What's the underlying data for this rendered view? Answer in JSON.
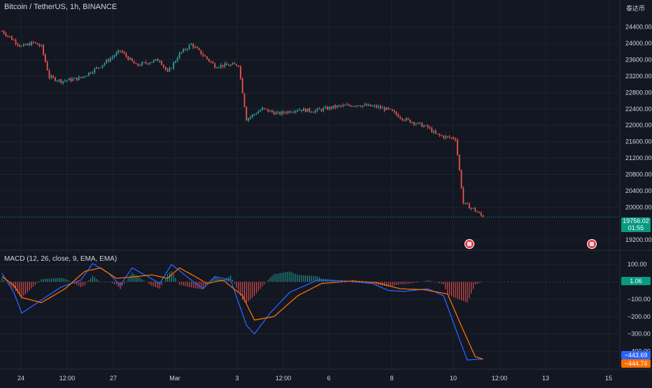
{
  "header": {
    "symbol_title": "Bitcoin / TetherUS, 1h, BINANCE",
    "currency": "泰达币"
  },
  "price_tag": {
    "price": "19756.02",
    "countdown": "01:55"
  },
  "macd": {
    "title": "MACD (12, 26, close, 9, EMA, EMA)",
    "hist_value": "1.06",
    "macd_value": "−443.69",
    "signal_value": "−444.74",
    "colors": {
      "macd": "#2962ff",
      "signal": "#ff6d00",
      "hist_pos": "#26a69a",
      "hist_neg": "#ef5350"
    }
  },
  "colors": {
    "background": "#131722",
    "up": "#26a69a",
    "down": "#ef5350",
    "grid": "#1e222d",
    "text": "#d1d4dc",
    "accent_tag": "#089981"
  },
  "events": [
    {
      "icon": "event-flag-icon",
      "x": 2208
    },
    {
      "icon": "event-flag-icon",
      "x": 2278
    }
  ],
  "chart_data": [
    {
      "type": "candlestick",
      "title": "Bitcoin / TetherUS, 1h, BINANCE",
      "x_unit": "hours since Feb 23 00:00",
      "y_ticks": [
        "24400.00",
        "24000.00",
        "23600.00",
        "23200.00",
        "22800.00",
        "22400.00",
        "22000.00",
        "21600.00",
        "21200.00",
        "20800.00",
        "20400.00",
        "20000.00",
        "19200.00"
      ],
      "x_ticks": [
        "24",
        "12:00",
        "27",
        "Mar",
        "3",
        "12:00",
        "6",
        "8",
        "10",
        "12:00",
        "13",
        "15"
      ],
      "ylim": [
        19050,
        24650
      ],
      "last_price": 19756.02,
      "close_anchors": [
        [
          2160,
          24300
        ],
        [
          2164,
          24150
        ],
        [
          2170,
          23920
        ],
        [
          2176,
          24020
        ],
        [
          2180,
          23920
        ],
        [
          2184,
          23180
        ],
        [
          2190,
          23080
        ],
        [
          2196,
          23120
        ],
        [
          2200,
          23160
        ],
        [
          2210,
          23450
        ],
        [
          2220,
          23820
        ],
        [
          2228,
          23460
        ],
        [
          2236,
          23560
        ],
        [
          2240,
          23600
        ],
        [
          2244,
          23280
        ],
        [
          2250,
          23740
        ],
        [
          2256,
          23980
        ],
        [
          2268,
          23450
        ],
        [
          2280,
          23480
        ],
        [
          2284,
          22150
        ],
        [
          2292,
          22400
        ],
        [
          2300,
          22280
        ],
        [
          2310,
          22390
        ],
        [
          2318,
          22350
        ],
        [
          2330,
          22460
        ],
        [
          2340,
          22500
        ],
        [
          2350,
          22450
        ],
        [
          2356,
          22380
        ],
        [
          2364,
          22150
        ],
        [
          2376,
          21950
        ],
        [
          2380,
          21780
        ],
        [
          2384,
          21720
        ],
        [
          2390,
          21680
        ],
        [
          2394,
          20100
        ],
        [
          2400,
          19920
        ],
        [
          2404,
          19756
        ]
      ]
    },
    {
      "type": "line",
      "title": "MACD (12, 26, close, 9, EMA, EMA)",
      "y_ticks": [
        "100.00",
        "−100.00",
        "−200.00",
        "−300.00",
        "−400.00"
      ],
      "ylim": [
        -470,
        125
      ],
      "series": [
        {
          "name": "MACD",
          "anchors": [
            [
              2160,
              50
            ],
            [
              2166,
              -60
            ],
            [
              2170,
              -180
            ],
            [
              2178,
              -120
            ],
            [
              2190,
              -30
            ],
            [
              2200,
              10
            ],
            [
              2206,
              105
            ],
            [
              2214,
              50
            ],
            [
              2220,
              -20
            ],
            [
              2226,
              80
            ],
            [
              2234,
              30
            ],
            [
              2240,
              -10
            ],
            [
              2246,
              100
            ],
            [
              2256,
              10
            ],
            [
              2262,
              -40
            ],
            [
              2268,
              30
            ],
            [
              2276,
              10
            ],
            [
              2284,
              -250
            ],
            [
              2288,
              -300
            ],
            [
              2296,
              -180
            ],
            [
              2306,
              -60
            ],
            [
              2320,
              10
            ],
            [
              2334,
              5
            ],
            [
              2348,
              -10
            ],
            [
              2356,
              -50
            ],
            [
              2364,
              -55
            ],
            [
              2376,
              -40
            ],
            [
              2384,
              -80
            ],
            [
              2392,
              -330
            ],
            [
              2396,
              -450
            ],
            [
              2404,
              -443.69
            ]
          ]
        },
        {
          "name": "Signal",
          "anchors": [
            [
              2160,
              30
            ],
            [
              2166,
              -20
            ],
            [
              2170,
              -90
            ],
            [
              2180,
              -120
            ],
            [
              2192,
              -40
            ],
            [
              2202,
              60
            ],
            [
              2210,
              80
            ],
            [
              2218,
              20
            ],
            [
              2228,
              30
            ],
            [
              2236,
              40
            ],
            [
              2244,
              20
            ],
            [
              2250,
              80
            ],
            [
              2258,
              30
            ],
            [
              2264,
              -10
            ],
            [
              2272,
              10
            ],
            [
              2282,
              -80
            ],
            [
              2288,
              -220
            ],
            [
              2298,
              -200
            ],
            [
              2310,
              -80
            ],
            [
              2322,
              -10
            ],
            [
              2338,
              5
            ],
            [
              2350,
              -5
            ],
            [
              2362,
              -40
            ],
            [
              2374,
              -45
            ],
            [
              2386,
              -70
            ],
            [
              2394,
              -280
            ],
            [
              2400,
              -430
            ],
            [
              2404,
              -444.74
            ]
          ]
        }
      ]
    }
  ]
}
